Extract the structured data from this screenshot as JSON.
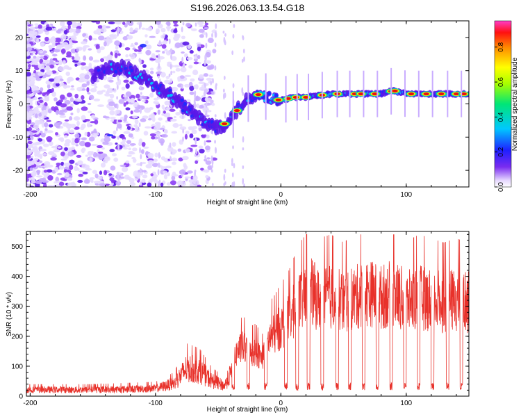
{
  "title": "S196.2026.063.13.54.G18",
  "chart_data": [
    {
      "type": "heatmap",
      "xlabel": "Height of straight line (km)",
      "ylabel": "Frequency (Hz)",
      "xlim": [
        -203,
        150
      ],
      "ylim": [
        -25,
        25
      ],
      "xticks": [
        -200,
        -100,
        0,
        100
      ],
      "yticks": [
        -20,
        -10,
        0,
        10,
        20
      ],
      "colorbar": {
        "label": "Normalized spectral amplitude",
        "range": [
          0.0,
          0.95
        ],
        "ticks": [
          0.0,
          0.2,
          0.4,
          0.6,
          0.8
        ],
        "tick_labels": [
          "0.0",
          "0.2",
          "0.4",
          "0.6",
          "0.8"
        ]
      },
      "ridge": {
        "x": [
          -150,
          -135,
          -125,
          -110,
          -100,
          -90,
          -80,
          -70,
          -60,
          -50,
          -45,
          -40,
          -35,
          -30,
          -25,
          -20,
          -10,
          0,
          10,
          20,
          40,
          60,
          80,
          90,
          100,
          120,
          150
        ],
        "y": [
          8,
          11,
          11,
          8,
          5,
          3,
          0,
          -3,
          -6,
          -7,
          -6,
          -4,
          -2,
          0,
          2,
          3,
          2,
          1,
          2,
          2,
          3,
          3,
          3,
          4,
          3,
          3,
          3
        ]
      },
      "legend_key": "bottom"
    },
    {
      "type": "line",
      "xlabel": "Height of straight line (km)",
      "ylabel": "SNR (10 * v/v)",
      "xlim": [
        -203,
        150
      ],
      "ylim": [
        0,
        550
      ],
      "xticks": [
        -200,
        -100,
        0,
        100
      ],
      "yticks": [
        0,
        100,
        200,
        300,
        400,
        500
      ],
      "series": [
        {
          "name": "SNR",
          "color": "#e8312a",
          "envelope_x": [
            -203,
            -150,
            -100,
            -85,
            -75,
            -65,
            -55,
            -45,
            -40,
            -35,
            -30,
            -25,
            -20,
            -15,
            -10,
            -5,
            0,
            5,
            10,
            15,
            20,
            25,
            30,
            40,
            50,
            60,
            70,
            80,
            90,
            100,
            110,
            120,
            130,
            140,
            150
          ],
          "envelope_y": [
            25,
            25,
            30,
            50,
            110,
            100,
            60,
            40,
            90,
            180,
            200,
            170,
            180,
            150,
            230,
            250,
            280,
            300,
            340,
            380,
            400,
            420,
            390,
            400,
            380,
            400,
            420,
            400,
            420,
            380,
            400,
            390,
            380,
            390,
            380
          ],
          "dropouts_x": [
            -38,
            -26,
            -12,
            4,
            13,
            22,
            33,
            45,
            55,
            66,
            77,
            88,
            99,
            110,
            121,
            133,
            144
          ]
        }
      ]
    }
  ]
}
